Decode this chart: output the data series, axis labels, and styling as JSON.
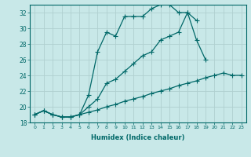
{
  "xlabel": "Humidex (Indice chaleur)",
  "xlim": [
    -0.5,
    23.5
  ],
  "ylim": [
    18,
    33
  ],
  "xticks": [
    0,
    1,
    2,
    3,
    4,
    5,
    6,
    7,
    8,
    9,
    10,
    11,
    12,
    13,
    14,
    15,
    16,
    17,
    18,
    19,
    20,
    21,
    22,
    23
  ],
  "yticks": [
    18,
    20,
    22,
    24,
    26,
    28,
    30,
    32
  ],
  "bg_color": "#c8e8e8",
  "line_color": "#006868",
  "grid_color": "#b0d0d0",
  "line1_x": [
    0,
    1,
    2,
    3,
    4,
    5,
    6,
    7,
    8,
    9,
    10,
    11,
    12,
    13,
    14,
    15,
    16,
    17,
    18,
    19,
    20,
    21,
    22,
    23
  ],
  "line1_y": [
    19.0,
    19.5,
    19.0,
    18.7,
    18.7,
    19.0,
    19.3,
    19.6,
    20.0,
    20.3,
    20.7,
    21.0,
    21.3,
    21.7,
    22.0,
    22.3,
    22.7,
    23.0,
    23.3,
    23.7,
    24.0,
    24.3,
    24.0,
    24.0
  ],
  "line2_x": [
    0,
    1,
    2,
    3,
    4,
    5,
    6,
    7,
    8,
    9,
    10,
    11,
    12,
    13,
    14,
    15,
    16,
    17,
    18,
    19,
    20,
    21,
    22,
    23
  ],
  "line2_y": [
    19.0,
    19.5,
    19.0,
    18.7,
    18.7,
    19.0,
    20.0,
    21.0,
    23.0,
    23.5,
    24.5,
    25.5,
    26.5,
    27.0,
    28.5,
    29.0,
    29.5,
    32.0,
    28.5,
    26.0,
    null,
    null,
    null,
    null
  ],
  "line3_x": [
    0,
    1,
    2,
    3,
    4,
    5,
    6,
    7,
    8,
    9,
    10,
    11,
    12,
    13,
    14,
    15,
    16,
    17,
    18,
    20,
    21,
    22,
    23
  ],
  "line3_y": [
    19.0,
    19.5,
    19.0,
    18.7,
    18.7,
    19.0,
    21.5,
    27.0,
    29.5,
    29.0,
    31.5,
    31.5,
    31.5,
    32.5,
    33.0,
    33.0,
    32.0,
    32.0,
    31.0,
    null,
    null,
    null,
    null
  ],
  "marker_size": 2.5,
  "line_width": 0.9
}
